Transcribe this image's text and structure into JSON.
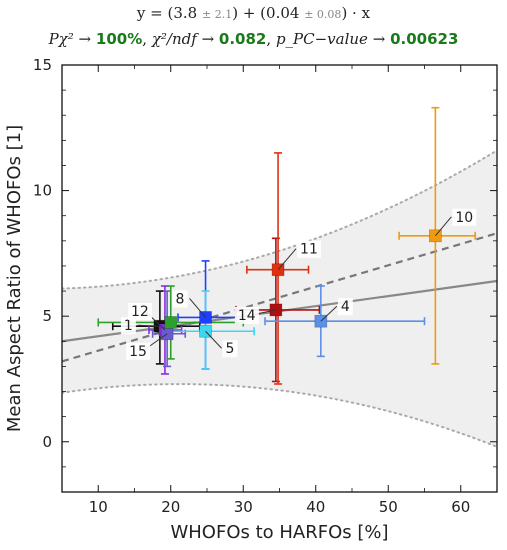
{
  "header": {
    "equation": {
      "prefix": "y = (",
      "intercept": "3.8",
      "intercept_err": "± 2.1",
      "middle": ") + (",
      "slope": "0.04",
      "slope_err": "± 0.08",
      "suffix": ") · x"
    },
    "stats": {
      "p_chi2_label": "Pχ² →",
      "p_chi2_value": "100%",
      "sep1": ",",
      "chi2_ndf_label": "χ²/ndf →",
      "chi2_ndf_value": "0.082",
      "sep2": ",",
      "ppc_label": "p_PC−value →",
      "ppc_value": "0.00623"
    }
  },
  "chart_data": {
    "type": "scatter",
    "xlabel": "WHOFOs to HARFOs [%]",
    "ylabel": "Mean Aspect Ratio of WHOFOs [1]",
    "xlim": [
      5,
      65
    ],
    "ylim": [
      -2,
      15
    ],
    "x_ticks": [
      10,
      20,
      30,
      40,
      50,
      60
    ],
    "y_ticks": [
      0,
      5,
      10,
      15
    ],
    "grid": false,
    "points": [
      {
        "label": "1",
        "x": 18.5,
        "y": 4.6,
        "x_err": [
          12.0,
          24.0
        ],
        "y_err": [
          3.1,
          6.0
        ],
        "color": "#111111"
      },
      {
        "label": "12",
        "x": 19.2,
        "y": 4.45,
        "x_err": [
          17.0,
          21.5
        ],
        "y_err": [
          2.7,
          6.2
        ],
        "color": "#8a2be2"
      },
      {
        "label": "15",
        "x": 19.5,
        "y": 4.3,
        "x_err": [
          17.5,
          22.0
        ],
        "y_err": [
          3.0,
          6.0
        ],
        "color": "#6a5acd"
      },
      {
        "label": "",
        "x": 20.0,
        "y": 4.75,
        "x_err": [
          10.0,
          30.0
        ],
        "y_err": [
          3.3,
          6.2
        ],
        "color": "#2ca02c"
      },
      {
        "label": "8",
        "x": 24.8,
        "y": 4.95,
        "x_err": [
          21.0,
          29.0
        ],
        "y_err": [
          2.9,
          7.2
        ],
        "color": "#1f3fff"
      },
      {
        "label": "5",
        "x": 24.8,
        "y": 4.4,
        "x_err": [
          19.0,
          31.5
        ],
        "y_err": [
          2.9,
          6.0
        ],
        "color": "#3cd6f0"
      },
      {
        "label": "14",
        "x": 34.5,
        "y": 5.25,
        "x_err": [
          29.0,
          40.5
        ],
        "y_err": [
          2.4,
          8.1
        ],
        "color": "#b01010"
      },
      {
        "label": "11",
        "x": 34.8,
        "y": 6.85,
        "x_err": [
          30.5,
          39.0
        ],
        "y_err": [
          2.3,
          11.5
        ],
        "color": "#e03010"
      },
      {
        "label": "4",
        "x": 40.7,
        "y": 4.8,
        "x_err": [
          33.0,
          55.0
        ],
        "y_err": [
          3.4,
          6.2
        ],
        "color": "#5b8fe8"
      },
      {
        "label": "10",
        "x": 56.5,
        "y": 8.2,
        "x_err": [
          51.5,
          62.0
        ],
        "y_err": [
          3.1,
          13.3
        ],
        "color": "#f09a10"
      }
    ],
    "fit_line": {
      "intercept": 3.8,
      "slope": 0.04
    },
    "dashed_line": {
      "x": [
        5,
        65
      ],
      "y": [
        3.2,
        8.3
      ]
    },
    "band": {
      "x": [
        5,
        35,
        65
      ],
      "upper": [
        6.1,
        7.6,
        11.6
      ],
      "lower": [
        1.95,
        2.05,
        -0.2
      ]
    }
  },
  "colors": {
    "fit": "#888888",
    "dashed": "#777777",
    "band_fill": "#efefef",
    "band_edge": "#aaaaaa",
    "stats_value": "#1a7a1a"
  }
}
